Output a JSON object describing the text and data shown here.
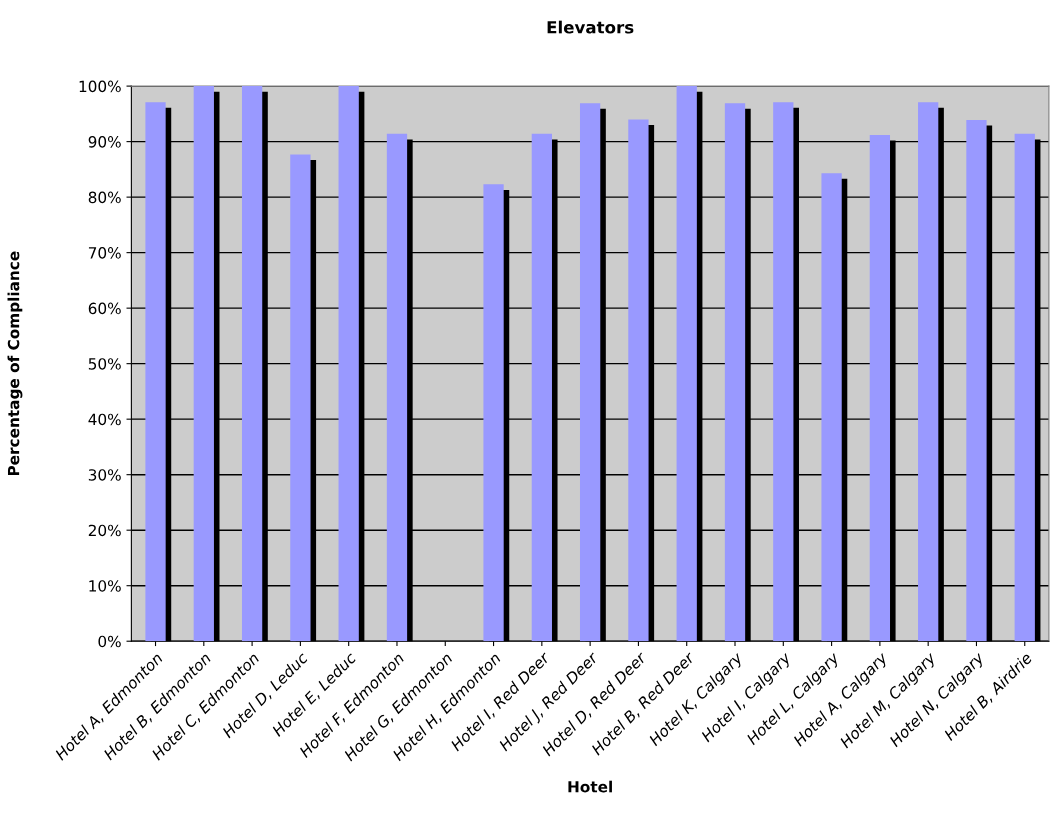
{
  "chart_data": {
    "type": "bar",
    "title": "Elevators",
    "xlabel": "Hotel",
    "ylabel": "Percentage of Compliance",
    "categories": [
      "Hotel A, Edmonton",
      "Hotel B, Edmonton",
      "Hotel C, Edmonton",
      "Hotel D, Leduc",
      "Hotel E, Leduc",
      "Hotel F, Edmonton",
      "Hotel G, Edmonton",
      "Hotel H, Edmonton",
      "Hotel I, Red Deer",
      "Hotel J, Red Deer",
      "Hotel D, Red Deer",
      "Hotel B, Red Deer",
      "Hotel K, Calgary",
      "Hotel I, Calgary",
      "Hotel L, Calgary",
      "Hotel A, Calgary",
      "Hotel M, Calgary",
      "Hotel N, Calgary",
      "Hotel B, Airdrie"
    ],
    "values": [
      97.1,
      100,
      100,
      87.7,
      100,
      91.4,
      null,
      82.3,
      91.4,
      96.9,
      94.0,
      100,
      96.9,
      97.1,
      84.3,
      91.2,
      97.1,
      93.9,
      91.4
    ],
    "color": "#9999ff",
    "ylim": [
      0,
      100
    ],
    "yticks": [
      {
        "value": 0,
        "label": "0%"
      },
      {
        "value": 10,
        "label": "10%"
      },
      {
        "value": 20,
        "label": "20%"
      },
      {
        "value": 30,
        "label": "30%"
      },
      {
        "value": 40,
        "label": "40%"
      },
      {
        "value": 50,
        "label": "50%"
      },
      {
        "value": 60,
        "label": "60%"
      },
      {
        "value": 70,
        "label": "70%"
      },
      {
        "value": 80,
        "label": "80%"
      },
      {
        "value": 90,
        "label": "90%"
      },
      {
        "value": 100,
        "label": "100%"
      }
    ],
    "grid": "y",
    "legend": false
  }
}
